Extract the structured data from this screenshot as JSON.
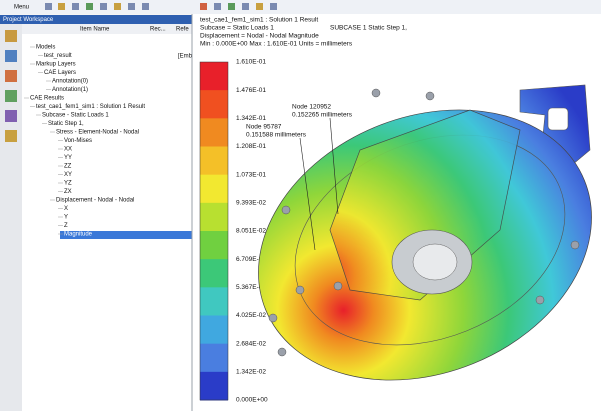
{
  "toolbar": {
    "menu": "Menu"
  },
  "workspace": {
    "title": "Project Workspace",
    "columns": [
      "Item Name",
      "Rec...",
      "Refe"
    ],
    "reference": "[Emb",
    "tree": [
      "Models",
      "test_result",
      "Markup Layers",
      "CAE Layers",
      "Annotation(0)",
      "Annotation(1)",
      "CAE Results",
      "test_cae1_fem1_sim1 : Solution 1 Result",
      "Subcase - Static Loads 1",
      "Static Step 1,",
      "Stress - Element-Nodal - Nodal",
      "Von-Mises",
      "XX",
      "YY",
      "ZZ",
      "XY",
      "YZ",
      "ZX",
      "Displacement - Nodal - Nodal",
      "X",
      "Y",
      "Z",
      "Magnitude"
    ]
  },
  "viewport": {
    "header": [
      "test_cae1_fem1_sim1 : Solution 1 Result",
      "Subcase = Static Loads 1",
      "Displacement = Nodal - Nodal  Magnitude",
      "Min : 0.000E+00  Max : 1.610E-01  Units = millimeters"
    ],
    "step": "SUBCASE 1  Static Step 1,",
    "legend": [
      "1.610E-01",
      "1.476E-01",
      "1.342E-01",
      "1.208E-01",
      "1.073E-01",
      "9.393E-02",
      "8.051E-02",
      "6.709E-02",
      "5.367E-02",
      "4.025E-02",
      "2.684E-02",
      "1.342E-02",
      "0.000E+00"
    ],
    "annotations": [
      {
        "node": "Node 120952",
        "value": "0.152265 millimeters"
      },
      {
        "node": "Node 95787",
        "value": "0.151588 millimeters"
      }
    ]
  }
}
